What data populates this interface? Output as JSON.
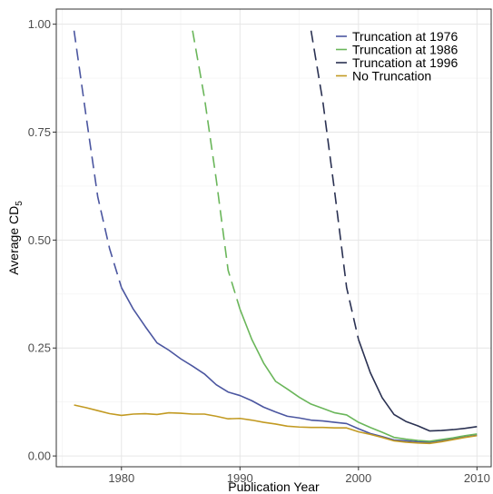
{
  "chart_data": {
    "type": "line",
    "xlabel": "Publication Year",
    "ylabel": {
      "main": "Average CD",
      "subscript": "5"
    },
    "xlim": [
      1974.5,
      2011.2
    ],
    "ylim": [
      -0.025,
      1.035
    ],
    "xticks": [
      1980,
      1990,
      2000,
      2010
    ],
    "yticks": [
      0.0,
      0.25,
      0.5,
      0.75,
      1.0
    ],
    "xtick_labels": [
      "1980",
      "1990",
      "2000",
      "2010"
    ],
    "ytick_labels": [
      "0.00",
      "0.25",
      "0.50",
      "0.75",
      "1.00"
    ],
    "grid": true,
    "legend_position": "top-right",
    "series": [
      {
        "name": "Truncation at 1976",
        "color": "#4b56a0",
        "dashed_until": 1980,
        "x": [
          1976,
          1977,
          1978,
          1979,
          1980,
          1981,
          1982,
          1983,
          1984,
          1985,
          1986,
          1987,
          1988,
          1989,
          1990,
          1991,
          1992,
          1993,
          1994,
          1995,
          1996,
          1997,
          1998,
          1999,
          2000,
          2001,
          2002,
          2003,
          2004,
          2005,
          2006,
          2007,
          2008,
          2009,
          2010
        ],
        "y": [
          0.985,
          0.79,
          0.6,
          0.48,
          0.39,
          0.34,
          0.3,
          0.262,
          0.245,
          0.225,
          0.208,
          0.19,
          0.165,
          0.148,
          0.14,
          0.128,
          0.113,
          0.102,
          0.092,
          0.088,
          0.083,
          0.081,
          0.078,
          0.075,
          0.063,
          0.052,
          0.045,
          0.037,
          0.035,
          0.033,
          0.032,
          0.036,
          0.04,
          0.044,
          0.048
        ]
      },
      {
        "name": "Truncation at 1986",
        "color": "#6ab65a",
        "dashed_until": 1990,
        "x": [
          1986,
          1987,
          1988,
          1989,
          1990,
          1991,
          1992,
          1993,
          1994,
          1995,
          1996,
          1997,
          1998,
          1999,
          2000,
          2001,
          2002,
          2003,
          2004,
          2005,
          2006,
          2007,
          2008,
          2009,
          2010
        ],
        "y": [
          0.985,
          0.83,
          0.64,
          0.43,
          0.34,
          0.27,
          0.215,
          0.173,
          0.155,
          0.136,
          0.12,
          0.11,
          0.1,
          0.095,
          0.078,
          0.066,
          0.055,
          0.043,
          0.039,
          0.036,
          0.034,
          0.038,
          0.042,
          0.047,
          0.051
        ]
      },
      {
        "name": "Truncation at 1996",
        "color": "#2a3152",
        "dashed_until": 2000,
        "x": [
          1996,
          1997,
          1998,
          1999,
          2000,
          2001,
          2002,
          2003,
          2004,
          2005,
          2006,
          2007,
          2008,
          2009,
          2010
        ],
        "y": [
          0.985,
          0.82,
          0.61,
          0.39,
          0.27,
          0.193,
          0.135,
          0.096,
          0.08,
          0.07,
          0.058,
          0.059,
          0.061,
          0.064,
          0.068
        ]
      },
      {
        "name": "No Truncation",
        "color": "#c29a22",
        "dashed_until": null,
        "x": [
          1976,
          1977,
          1978,
          1979,
          1980,
          1981,
          1982,
          1983,
          1984,
          1985,
          1986,
          1987,
          1988,
          1989,
          1990,
          1991,
          1992,
          1993,
          1994,
          1995,
          1996,
          1997,
          1998,
          1999,
          2000,
          2001,
          2002,
          2003,
          2004,
          2005,
          2006,
          2007,
          2008,
          2009,
          2010
        ],
        "y": [
          0.118,
          0.112,
          0.105,
          0.098,
          0.094,
          0.097,
          0.098,
          0.096,
          0.1,
          0.099,
          0.097,
          0.097,
          0.092,
          0.086,
          0.087,
          0.083,
          0.078,
          0.074,
          0.069,
          0.067,
          0.066,
          0.066,
          0.065,
          0.065,
          0.056,
          0.05,
          0.043,
          0.035,
          0.032,
          0.03,
          0.029,
          0.033,
          0.038,
          0.043,
          0.047
        ]
      }
    ]
  }
}
